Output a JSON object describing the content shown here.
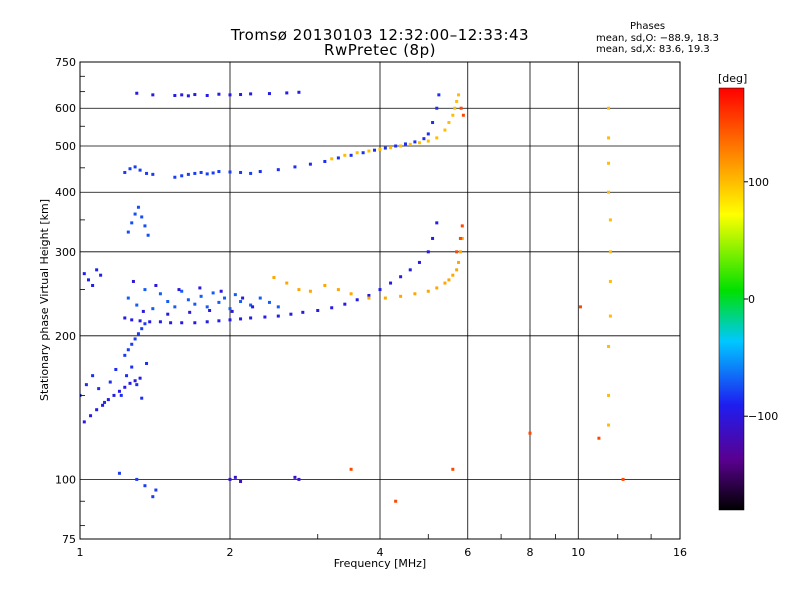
{
  "chart_data": {
    "type": "scatter",
    "title": "Tromsø 20130103 12:32:00–12:33:43",
    "subtitle": "RwPretec (8p)",
    "phase_title": "Phases",
    "phase_stats": [
      "mean, sd,O: −88.9, 18.3",
      "mean, sd,X:  83.6, 19.3"
    ],
    "xlabel": "Frequency [MHz]",
    "ylabel": "Stationary phase Virtual Height [km]",
    "x_scale": "log",
    "y_scale": "log",
    "xlim": [
      1,
      16
    ],
    "ylim": [
      75,
      750
    ],
    "grid": true,
    "x_ticks": [
      {
        "v": 1,
        "label": "1"
      },
      {
        "v": 2,
        "label": "2"
      },
      {
        "v": 4,
        "label": "4"
      },
      {
        "v": 6,
        "label": "6"
      },
      {
        "v": 8,
        "label": "8"
      },
      {
        "v": 10,
        "label": "10"
      },
      {
        "v": 16,
        "label": "16"
      }
    ],
    "y_ticks": [
      {
        "v": 75,
        "label": "75"
      },
      {
        "v": 100,
        "label": "100"
      },
      {
        "v": 200,
        "label": "200"
      },
      {
        "v": 300,
        "label": "300"
      },
      {
        "v": 400,
        "label": "400"
      },
      {
        "v": 500,
        "label": "500"
      },
      {
        "v": 600,
        "label": "600"
      },
      {
        "v": 750,
        "label": "750"
      }
    ],
    "colorbar": {
      "label": "[deg]",
      "range": [
        -180,
        180
      ],
      "ticks": [
        {
          "v": 100,
          "label": "100"
        },
        {
          "v": 0,
          "label": "0"
        },
        {
          "v": -100,
          "label": "−100"
        }
      ]
    },
    "series": [
      {
        "phase": -95,
        "x": [
          1.02,
          1.05,
          1.08,
          1.11,
          1.14,
          1.17,
          1.2,
          1.23,
          1.26,
          1.29,
          1.32
        ],
        "y": [
          132,
          136,
          140,
          143,
          147,
          150,
          153,
          156,
          159,
          161,
          163
        ]
      },
      {
        "phase": -85,
        "x": [
          1.0,
          1.03,
          1.06,
          1.09,
          1.12,
          1.15,
          1.18,
          1.21,
          1.24,
          1.27,
          1.3,
          1.33,
          1.36
        ],
        "y": [
          150,
          158,
          165,
          155,
          145,
          160,
          170,
          150,
          165,
          172,
          158,
          148,
          175
        ]
      },
      {
        "phase": -90,
        "x": [
          1.02,
          1.04,
          1.06,
          1.08,
          1.1
        ],
        "y": [
          270,
          262,
          255,
          275,
          268
        ]
      },
      {
        "phase": -80,
        "x": [
          1.23,
          1.25,
          1.27,
          1.29,
          1.31,
          1.33,
          1.35
        ],
        "y": [
          182,
          187,
          192,
          197,
          202,
          207,
          212
        ]
      },
      {
        "phase": -95,
        "x": [
          1.23,
          1.27,
          1.32,
          1.38,
          1.45,
          1.52,
          1.6,
          1.7,
          1.8,
          1.9,
          2.0,
          2.1,
          2.2,
          2.35,
          2.5,
          2.65,
          2.8,
          3.0,
          3.2,
          3.4,
          3.6,
          3.8,
          4.0,
          4.2,
          4.4,
          4.6,
          4.8,
          5.0,
          5.1,
          5.2
        ],
        "y": [
          218,
          216,
          215,
          214,
          214,
          213,
          213,
          213,
          214,
          215,
          216,
          217,
          218,
          219,
          220,
          222,
          224,
          226,
          229,
          233,
          238,
          243,
          250,
          258,
          266,
          275,
          285,
          300,
          320,
          345
        ]
      },
      {
        "phase": -70,
        "x": [
          1.25,
          1.3,
          1.35,
          1.4,
          1.45,
          1.5,
          1.55,
          1.6,
          1.65,
          1.7,
          1.75,
          1.8,
          1.85,
          1.9,
          1.95,
          2.0,
          2.05,
          2.1,
          2.2,
          2.3,
          2.4,
          2.5
        ],
        "y": [
          240,
          232,
          250,
          228,
          245,
          236,
          230,
          248,
          238,
          233,
          242,
          230,
          246,
          235,
          240,
          228,
          244,
          236,
          232,
          240,
          235,
          230
        ]
      },
      {
        "phase": -100,
        "x": [
          1.28,
          1.34,
          1.42,
          1.5,
          1.58,
          1.66,
          1.74,
          1.82,
          1.92,
          2.02,
          2.12,
          2.22
        ],
        "y": [
          260,
          225,
          255,
          222,
          250,
          224,
          252,
          226,
          248,
          225,
          240,
          230
        ]
      },
      {
        "phase": -75,
        "x": [
          1.25,
          1.27,
          1.29,
          1.31,
          1.33,
          1.35,
          1.37
        ],
        "y": [
          330,
          345,
          360,
          372,
          355,
          340,
          325
        ]
      },
      {
        "phase": -80,
        "x": [
          1.23,
          1.26,
          1.29,
          1.32,
          1.36,
          1.4,
          1.55,
          1.6,
          1.65,
          1.7,
          1.75,
          1.8,
          1.85,
          1.9,
          2.0,
          2.1,
          2.2
        ],
        "y": [
          440,
          448,
          452,
          445,
          438,
          436,
          430,
          433,
          436,
          438,
          440,
          437,
          439,
          442,
          441,
          440,
          438
        ]
      },
      {
        "phase": -85,
        "x": [
          2.3,
          2.5,
          2.7,
          2.9,
          3.1,
          3.3,
          3.5,
          3.7,
          3.9,
          4.1,
          4.3,
          4.5,
          4.7,
          4.9,
          5.0,
          5.1,
          5.2,
          5.25
        ],
        "y": [
          442,
          446,
          452,
          458,
          464,
          472,
          478,
          484,
          490,
          495,
          500,
          505,
          510,
          518,
          530,
          560,
          600,
          640
        ]
      },
      {
        "phase": -95,
        "x": [
          1.3,
          1.4,
          1.55,
          1.6,
          1.65,
          1.7,
          1.8,
          1.9,
          2.0,
          2.1,
          2.2,
          2.4,
          2.6,
          2.75
        ],
        "y": [
          645,
          640,
          638,
          640,
          637,
          641,
          638,
          642,
          640,
          641,
          643,
          644,
          646,
          648
        ]
      },
      {
        "phase": 110,
        "x": [
          2.45,
          2.6,
          2.75,
          2.9,
          3.1,
          3.3,
          3.5,
          3.8,
          4.1,
          4.4,
          4.7,
          5.0,
          5.2,
          5.4,
          5.5,
          5.6,
          5.7,
          5.75,
          5.8,
          5.85
        ],
        "y": [
          265,
          258,
          250,
          248,
          255,
          250,
          245,
          240,
          240,
          242,
          245,
          248,
          252,
          258,
          262,
          268,
          275,
          285,
          300,
          320
        ]
      },
      {
        "phase": 100,
        "x": [
          3.2,
          3.4,
          3.6,
          3.8,
          4.0,
          4.2,
          4.4,
          4.6,
          4.8,
          5.0,
          5.2,
          5.4,
          5.5,
          5.6,
          5.65,
          5.7,
          5.75
        ],
        "y": [
          470,
          478,
          484,
          488,
          492,
          496,
          500,
          504,
          508,
          512,
          520,
          540,
          560,
          580,
          600,
          620,
          640
        ]
      },
      {
        "phase": 150,
        "x": [
          5.7,
          5.8,
          5.85,
          5.88,
          5.82
        ],
        "y": [
          300,
          320,
          340,
          580,
          600
        ]
      },
      {
        "phase": -110,
        "x": [
          2.0,
          2.05,
          2.1,
          2.7,
          2.75
        ],
        "y": [
          100,
          101,
          99,
          101,
          100
        ]
      },
      {
        "phase": -80,
        "x": [
          1.2,
          1.3,
          1.35,
          1.4,
          1.42
        ],
        "y": [
          103,
          100,
          97,
          92,
          95
        ]
      },
      {
        "phase": 100,
        "x": [
          11.5,
          11.5,
          11.5,
          11.5,
          11.6,
          11.6,
          11.6,
          11.6,
          11.5,
          11.5,
          11.5
        ],
        "y": [
          600,
          520,
          460,
          400,
          350,
          300,
          260,
          220,
          190,
          150,
          130
        ]
      },
      {
        "phase": 150,
        "x": [
          4.3,
          3.5,
          5.6,
          8.0,
          10.1,
          11.0,
          12.3
        ],
        "y": [
          90,
          105,
          105,
          125,
          230,
          122,
          100
        ]
      }
    ]
  }
}
